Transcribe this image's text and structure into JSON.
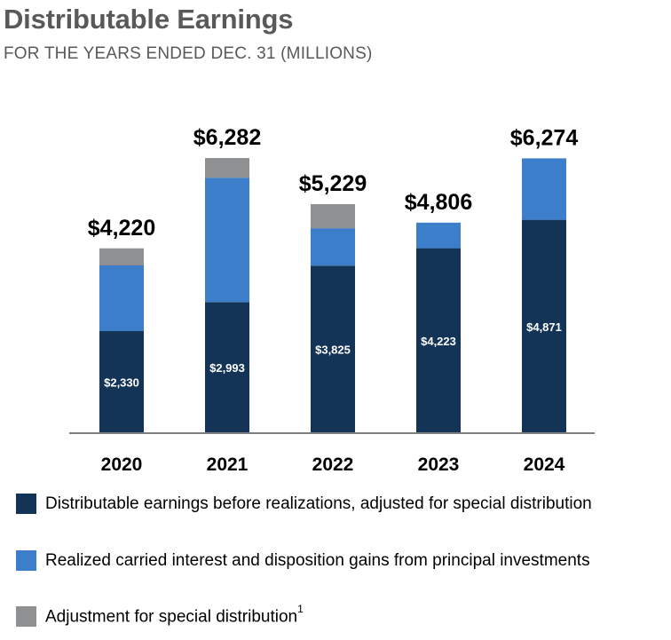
{
  "title": "Distributable Earnings",
  "subtitle": "FOR THE YEARS ENDED DEC. 31 (MILLIONS)",
  "colors": {
    "base": "#143457",
    "realized": "#3c7ec9",
    "adjustment": "#8f9091",
    "axis": "#7f7f7f"
  },
  "chart_data": {
    "type": "bar",
    "stacked": true,
    "categories": [
      "2020",
      "2021",
      "2022",
      "2023",
      "2024"
    ],
    "totals": [
      4220,
      6282,
      5229,
      4806,
      6274
    ],
    "total_labels": [
      "$4,220",
      "$6,282",
      "$5,229",
      "$4,806",
      "$6,274"
    ],
    "series": [
      {
        "name": "Distributable earnings before realizations, adjusted for special distribution",
        "values": [
          2330,
          2993,
          3825,
          4223,
          4871
        ],
        "value_labels": [
          "$2,330",
          "$2,993",
          "$3,825",
          "$4,223",
          "$4,871"
        ]
      },
      {
        "name": "Realized carried interest and disposition gains from principal investments",
        "values": [
          1500,
          2839,
          854,
          583,
          1403
        ]
      },
      {
        "name": "Adjustment for special distribution",
        "values": [
          390,
          450,
          550,
          0,
          0
        ]
      }
    ],
    "ylim": [
      0,
      6282
    ],
    "legend_position": "bottom",
    "grid": false
  },
  "legend": {
    "items": [
      {
        "label": "Distributable earnings before realizations, adjusted for special distribution"
      },
      {
        "label": "Realized carried interest and disposition gains from principal investments"
      },
      {
        "label": "Adjustment for special distribution",
        "superscript": "1"
      }
    ]
  }
}
